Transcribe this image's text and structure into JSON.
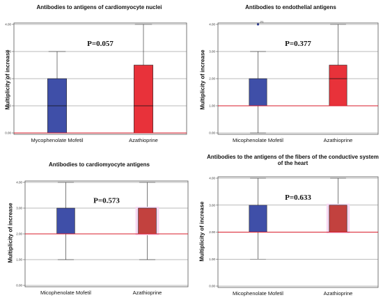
{
  "chart_data": [
    {
      "type": "box",
      "title": "Antibodies to antigens of cardiomyocyte nuclei",
      "ylabel": "Multiplicity of increase",
      "xlabel": "",
      "ylim": [
        0,
        4
      ],
      "yticks": [
        "0.00",
        "1.00",
        "2.00",
        "3.00",
        "4.00"
      ],
      "categories": [
        "Mycophenolate Mofetil",
        "Azathioprine"
      ],
      "reference_line": 0,
      "p_value": "P=0.057",
      "boxes": [
        {
          "category": "Mycophenolate Mofetil",
          "min": 0,
          "q1": 0,
          "median": 1,
          "q3": 2,
          "max": 3,
          "color": "#3f4fa8",
          "outliers": []
        },
        {
          "category": "Azathioprine",
          "min": 0,
          "q1": 0,
          "median": 1,
          "q3": 2.5,
          "max": 4,
          "color": "#e8323a",
          "outliers": []
        }
      ]
    },
    {
      "type": "box",
      "title": "Antibodies to endothelial antigens",
      "ylabel": "Multiplicity of increase",
      "xlabel": "",
      "ylim": [
        0,
        4
      ],
      "yticks": [
        "0.00",
        "1.00",
        "2.00",
        "3.00",
        "4.00"
      ],
      "categories": [
        "Micophenolate Mofetil",
        "Azathioprine"
      ],
      "reference_line": 1,
      "p_value": "P=0.377",
      "boxes": [
        {
          "category": "Micophenolate Mofetil",
          "min": 0,
          "q1": 1,
          "median": 1,
          "q3": 2,
          "max": 3,
          "color": "#3f4fa8",
          "outliers": [
            {
              "value": 4,
              "label": "21"
            }
          ]
        },
        {
          "category": "Azathioprine",
          "min": 1,
          "q1": 1,
          "median": 2,
          "q3": 2.5,
          "max": 4,
          "color": "#e8323a",
          "outliers": []
        }
      ]
    },
    {
      "type": "box",
      "title": "Antibodies to cardiomyocyte antigens",
      "ylabel": "Multiplicity of increase",
      "xlabel": "",
      "ylim": [
        0,
        4
      ],
      "yticks": [
        "0.00",
        "1.00",
        "2.00",
        "3.00",
        "4.00"
      ],
      "categories": [
        "Micophenolate Mofetil",
        "Azathioprine"
      ],
      "reference_line": 2,
      "p_value": "P=0.573",
      "boxes": [
        {
          "category": "Micophenolate Mofetil",
          "min": 1,
          "q1": 2,
          "median": 2,
          "q3": 3,
          "max": 4,
          "color": "#3f4fa8",
          "outliers": []
        },
        {
          "category": "Azathioprine",
          "min": 1,
          "q1": 2,
          "median": 2,
          "q3": 3,
          "max": 4,
          "color": "#c2413e",
          "outliers": []
        }
      ]
    },
    {
      "type": "box",
      "title": "Antibodies to the antigens of the fibers of the conductive system of the heart",
      "ylabel": "Multiplicity of increase",
      "xlabel": "",
      "ylim": [
        0,
        4
      ],
      "yticks": [
        "0.00",
        "1.00",
        "2.00",
        "3.00",
        "4.00"
      ],
      "categories": [
        "Micophenolate Mofetil",
        "Azathioprine"
      ],
      "reference_line": 2,
      "p_value": "P=0.633",
      "boxes": [
        {
          "category": "Micophenolate Mofetil",
          "min": 1,
          "q1": 2,
          "median": 2,
          "q3": 3,
          "max": 4,
          "color": "#3f4fa8",
          "outliers": []
        },
        {
          "category": "Azathioprine",
          "min": 2,
          "q1": 2,
          "median": 2,
          "q3": 3,
          "max": 4,
          "color": "#c2413e",
          "outliers": []
        }
      ]
    }
  ]
}
